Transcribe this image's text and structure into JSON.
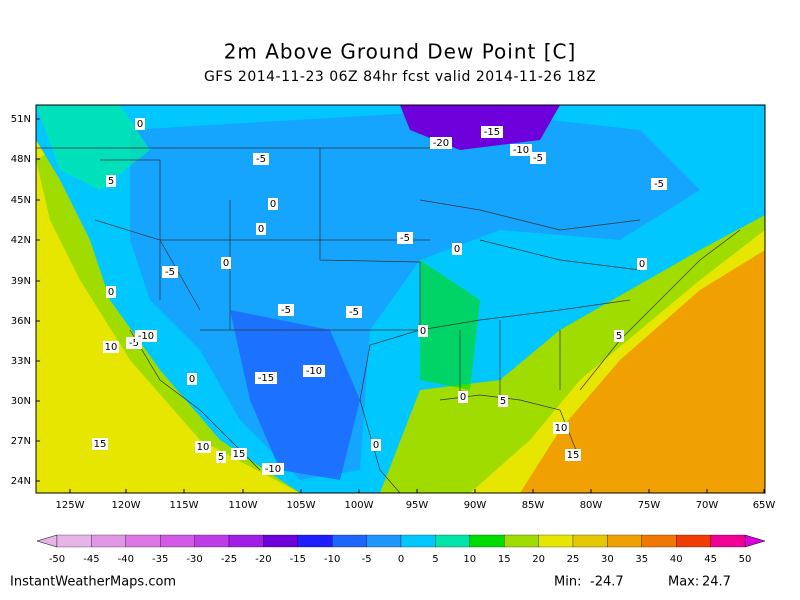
{
  "header": {
    "title": "2m Above Ground Dew Point [C]",
    "subtitle": "GFS 2014-11-23 06Z 84hr fcst valid 2014-11-26 18Z"
  },
  "map": {
    "lat_labels": [
      "51N",
      "48N",
      "45N",
      "42N",
      "39N",
      "36N",
      "33N",
      "30N",
      "27N",
      "24N"
    ],
    "lon_labels": [
      "125W",
      "120W",
      "115W",
      "110W",
      "105W",
      "100W",
      "95W",
      "90W",
      "85W",
      "80W",
      "75W",
      "70W",
      "65W"
    ],
    "contour_labels": [
      "0",
      "-20",
      "-15",
      "-10",
      "-5",
      "-5",
      "-5",
      "5",
      "0",
      "0",
      "-5",
      "0",
      "0",
      "-5",
      "0",
      "0",
      "-5",
      "-5",
      "0",
      "5",
      "10",
      "-5",
      "-10",
      "0",
      "-15",
      "-10",
      "0",
      "5",
      "10",
      "15",
      "10",
      "5",
      "15",
      "0",
      "15",
      "-10"
    ]
  },
  "colorbar": {
    "labels": [
      -50,
      -45,
      -40,
      -35,
      -30,
      -25,
      -20,
      -15,
      -10,
      -5,
      0,
      5,
      10,
      15,
      20,
      25,
      30,
      35,
      40,
      45,
      50
    ],
    "colors": [
      "#e6b4e6",
      "#e196e6",
      "#dc78e6",
      "#d25ae6",
      "#be3ce6",
      "#a01ee6",
      "#6e00dc",
      "#1e1eff",
      "#1e64ff",
      "#1e96ff",
      "#00c8ff",
      "#00e6aa",
      "#00dc00",
      "#a0dc00",
      "#e6e600",
      "#e6c800",
      "#f0a000",
      "#f07800",
      "#f03c00",
      "#f00096",
      "#dc00dc"
    ]
  },
  "footer": {
    "site": "InstantWeatherMaps.com",
    "min_label": "Min:",
    "min": -24.7,
    "max_label": "Max:",
    "max": 24.7
  }
}
